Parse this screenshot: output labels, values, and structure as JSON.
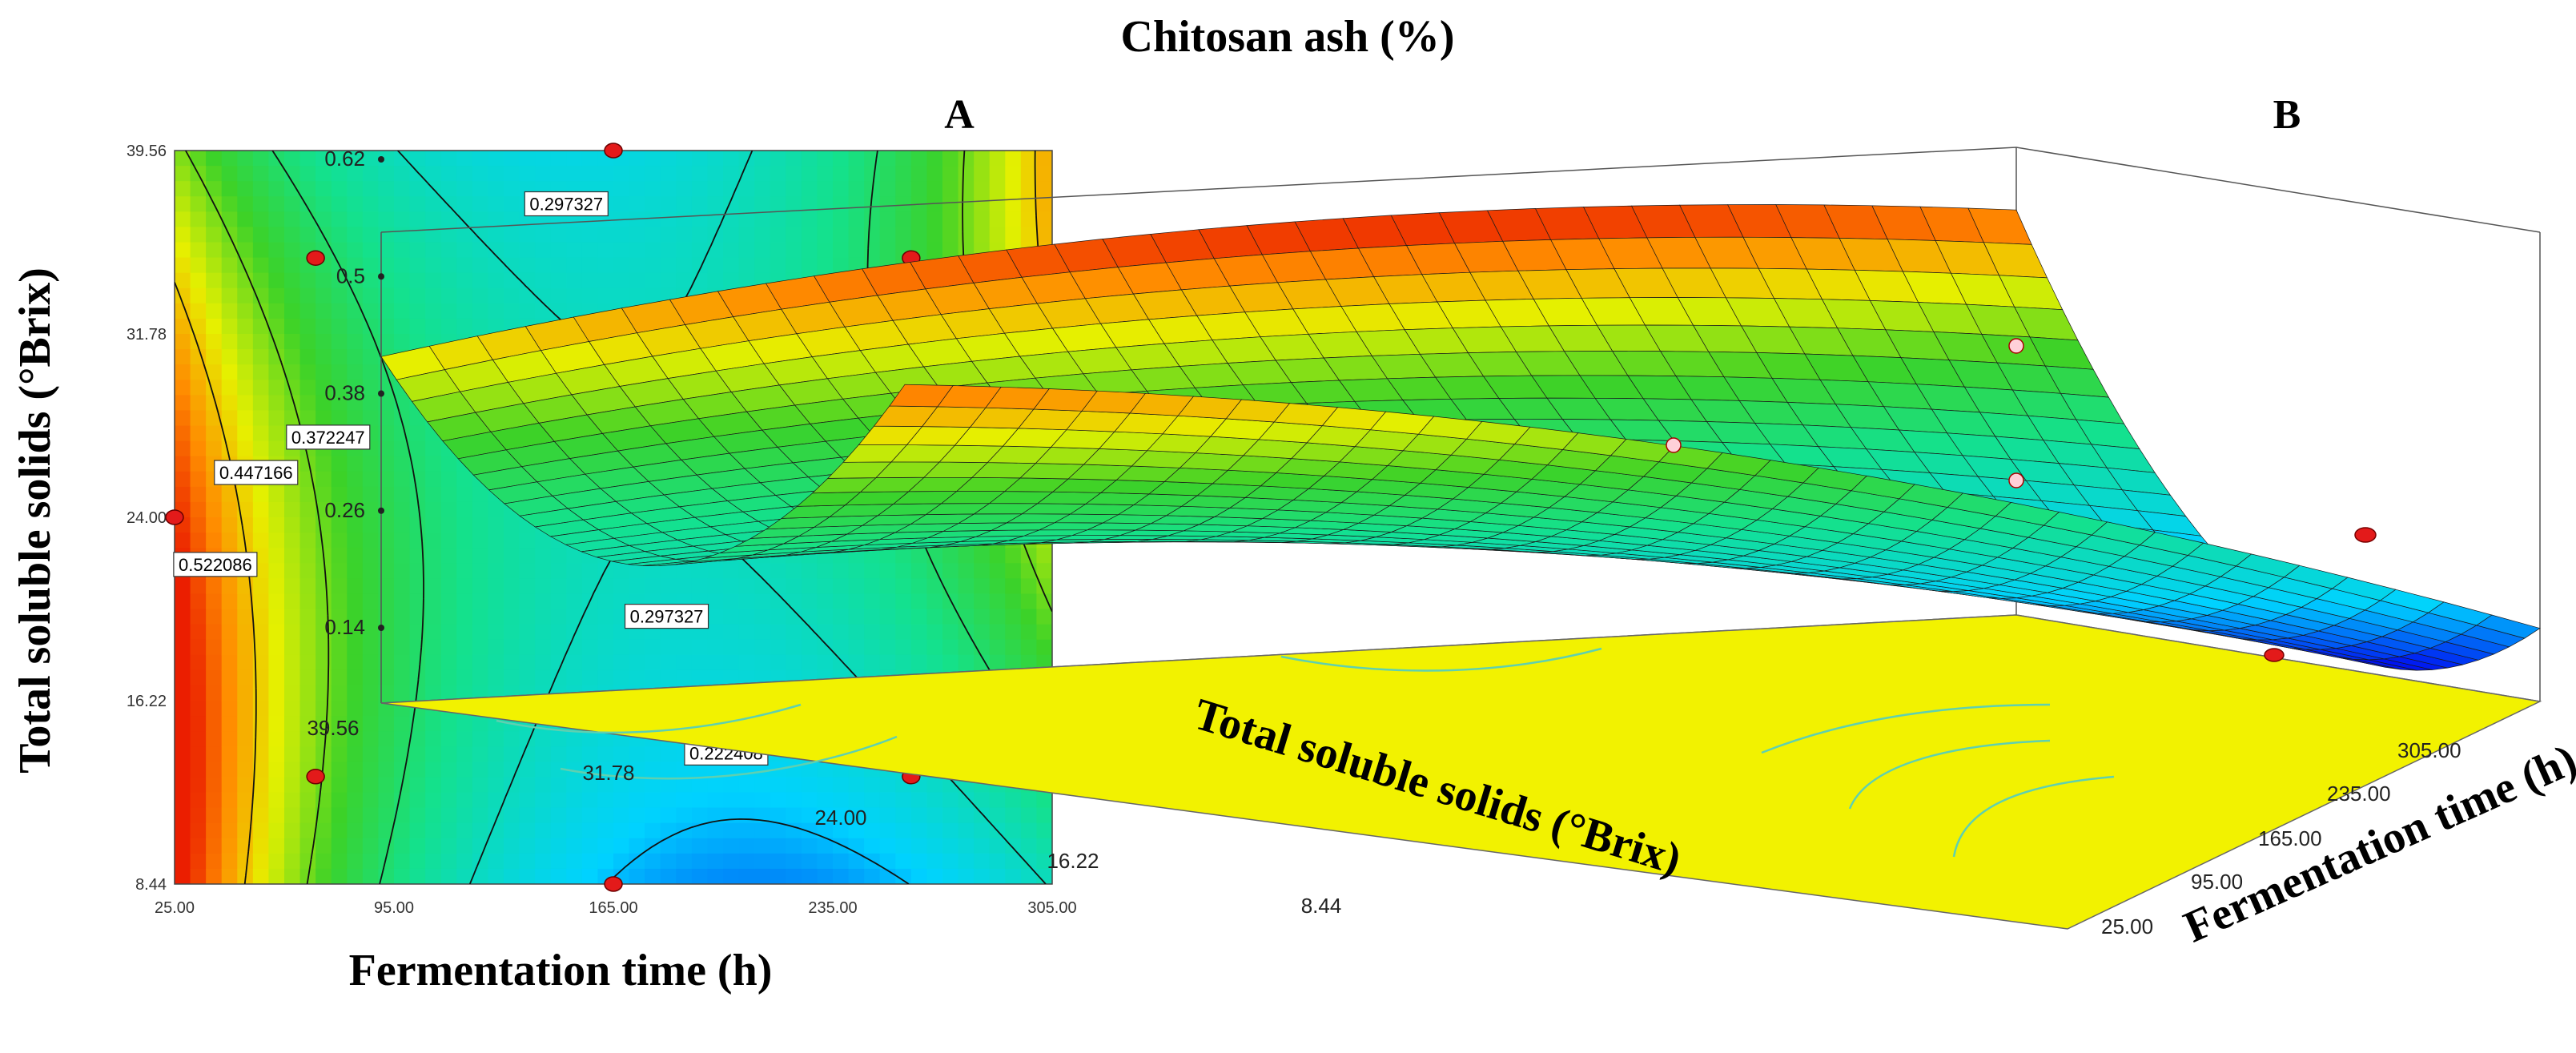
{
  "figure_title": "Chitosan ash (%)",
  "chart_data": [
    {
      "panel": "A",
      "type": "heatmap",
      "subtype": "contour",
      "title": "Chitosan ash (%)",
      "xlabel": "Fermentation time (h)",
      "ylabel": "Total soluble solids (°Brix)",
      "xlim": [
        25,
        305
      ],
      "ylim": [
        8.44,
        39.56
      ],
      "x_ticks": [
        "25.00",
        "95.00",
        "165.00",
        "235.00",
        "305.00"
      ],
      "y_ticks": [
        "8.44",
        "16.22",
        "24.00",
        "31.78",
        "39.56"
      ],
      "contour_levels": [
        "0.222408",
        "0.297327",
        "0.372247",
        "0.447166",
        "0.522086"
      ],
      "design_points": [
        {
          "x": 165,
          "y": 39.56
        },
        {
          "x": 70,
          "y": 35
        },
        {
          "x": 260,
          "y": 35
        },
        {
          "x": 25,
          "y": 24
        },
        {
          "x": 165,
          "y": 24
        },
        {
          "x": 305,
          "y": 24
        },
        {
          "x": 70,
          "y": 13
        },
        {
          "x": 260,
          "y": 13
        },
        {
          "x": 165,
          "y": 8.44
        }
      ],
      "center_point_count": "5"
    },
    {
      "panel": "B",
      "type": "area",
      "subtype": "3d-surface",
      "xlabel": "Fermentation time (h)",
      "ylabel": "Total soluble solids (°Brix)",
      "zlabel": "Chitosan ash (%)",
      "x_ticks": [
        "25.00",
        "95.00",
        "165.00",
        "235.00",
        "305.00"
      ],
      "y_ticks": [
        "8.44",
        "16.22",
        "24.00",
        "31.78",
        "39.56"
      ],
      "z_ticks": [
        "0.14",
        "0.26",
        "0.38",
        "0.5",
        "0.62"
      ],
      "zlim": [
        0.14,
        0.62
      ]
    }
  ]
}
